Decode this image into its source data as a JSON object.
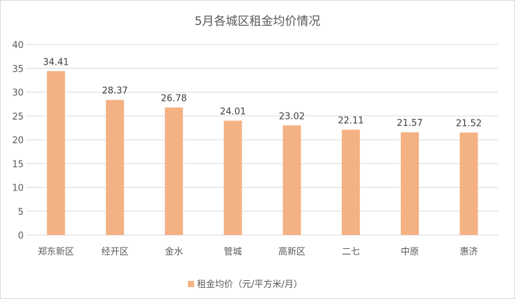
{
  "chart_data": {
    "type": "bar",
    "title": "5月各城区租金均价情况",
    "categories": [
      "郑东新区",
      "经开区",
      "金水",
      "管城",
      "高新区",
      "二七",
      "中原",
      "惠济"
    ],
    "series": [
      {
        "name": "租金均价（元/平方米/月）",
        "values": [
          34.41,
          28.37,
          26.78,
          24.01,
          23.02,
          22.11,
          21.57,
          21.52
        ],
        "color": "#f4b183"
      }
    ],
    "ylim": [
      0,
      40
    ],
    "yticks": [
      0,
      5,
      10,
      15,
      20,
      25,
      30,
      35,
      40
    ],
    "grid": true,
    "legend_position": "bottom",
    "data_labels": true
  }
}
